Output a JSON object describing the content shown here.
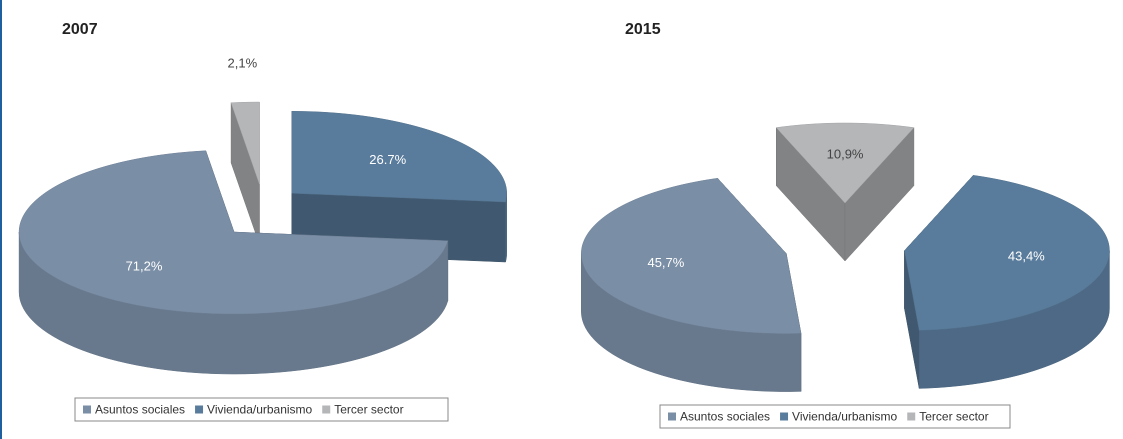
{
  "chart_data": [
    {
      "type": "pie",
      "title": "2007",
      "categories": [
        "Asuntos sociales",
        "Vivienda/urbanismo",
        "Tercer sector"
      ],
      "values": [
        71.2,
        26.7,
        2.1
      ],
      "value_labels": [
        "71,2%",
        "26.7%",
        "2,1%"
      ],
      "colors": [
        "#7a8ea6",
        "#5a7c9c",
        "#b4b6b8"
      ],
      "legend": "bottom"
    },
    {
      "type": "pie",
      "title": "2015",
      "categories": [
        "Asuntos sociales",
        "Vivienda/urbanismo",
        "Tercer sector"
      ],
      "values": [
        45.7,
        43.4,
        10.9
      ],
      "value_labels": [
        "45,7%",
        "43,4%",
        "10,9%"
      ],
      "colors": [
        "#7a8ea6",
        "#5a7c9c",
        "#b4b6b8"
      ],
      "legend": "bottom"
    }
  ]
}
